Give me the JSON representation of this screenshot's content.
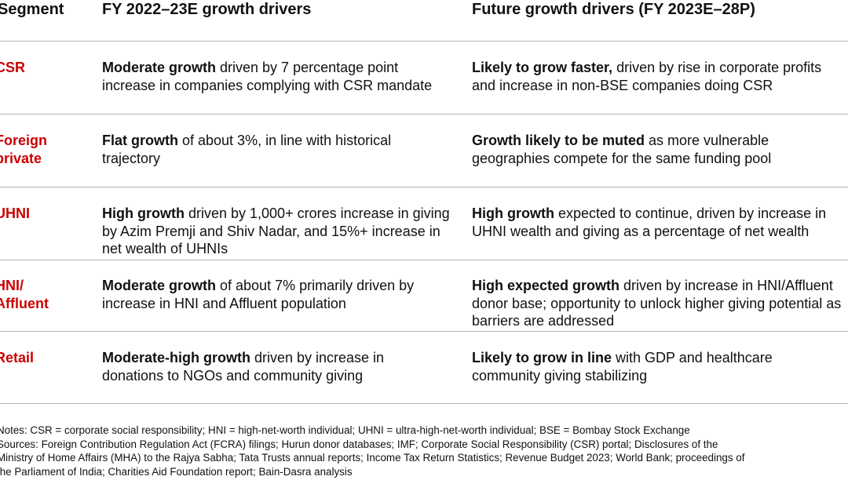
{
  "headers": {
    "segment": "Segment",
    "current": "FY 2022–23E growth drivers",
    "future": "Future growth drivers (FY 2023E–28P)"
  },
  "rows": [
    {
      "segment": "CSR",
      "current_bold": "Moderate growth",
      "current_rest": " driven by 7 percentage point increase in companies complying with CSR mandate",
      "future_bold": "Likely to grow faster,",
      "future_rest": " driven by rise in corporate profits and increase in non-BSE companies doing CSR"
    },
    {
      "segment": "Foreign private",
      "current_bold": "Flat growth",
      "current_rest": " of about 3%, in line with historical trajectory",
      "future_bold": "Growth likely to be muted",
      "future_rest": " as more vulnerable geographies compete for the same funding pool"
    },
    {
      "segment": "UHNI",
      "current_bold": "High growth",
      "current_rest": " driven by 1,000+ crores increase in giving by Azim Premji and Shiv Nadar, and 15%+ increase in net wealth of UHNIs",
      "future_bold": "High growth",
      "future_rest": " expected to continue, driven by increase in UHNI wealth and giving as a percentage of net wealth"
    },
    {
      "segment": "HNI/ Affluent",
      "current_bold": "Moderate growth",
      "current_rest": " of about 7% primarily driven by increase in HNI and Affluent population",
      "future_bold": "High expected growth",
      "future_rest": " driven by increase in HNI/Affluent donor base; opportunity to unlock higher giving potential as barriers are addressed"
    },
    {
      "segment": "Retail",
      "current_bold": "Moderate-high growth",
      "current_rest": " driven by increase in donations to NGOs and community giving",
      "future_bold": "Likely to grow in line",
      "future_rest": " with GDP and healthcare community giving stabilizing"
    }
  ],
  "notes": {
    "line1": "Notes: CSR = corporate social responsibility; HNI = high-net-worth individual; UHNI = ultra-high-net-worth individual; BSE = Bombay Stock Exchange",
    "line2": "Sources: Foreign Contribution Regulation Act (FCRA) filings; Hurun donor databases; IMF; Corporate Social Responsibility (CSR) portal; Disclosures of the",
    "line3": "Ministry of Home Affairs (MHA) to the Rajya Sabha; Tata Trusts annual reports; Income Tax Return Statistics; Revenue Budget 2023; World Bank; proceedings of",
    "line4": "the Parliament of India; Charities Aid Foundation report; Bain-Dasra analysis"
  },
  "colors": {
    "segment_red": "#cc0000",
    "rule_gray": "#b5b5b5"
  }
}
